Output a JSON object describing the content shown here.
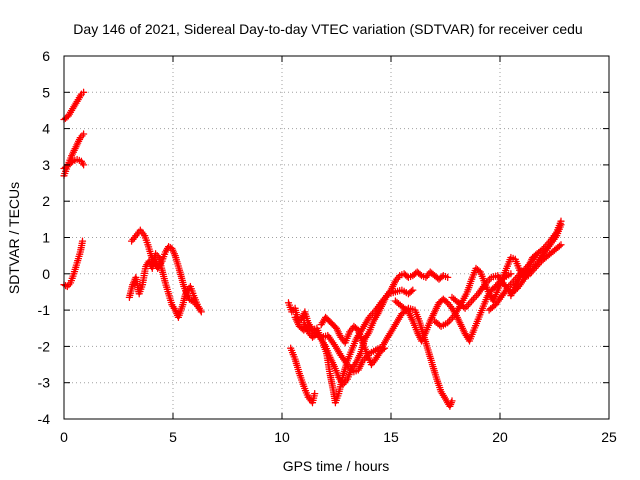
{
  "chart_data": {
    "type": "scatter",
    "title": "Day 146 of 2021, Sidereal Day-to-day VTEC variation (SDTVAR) for receiver cedu",
    "xlabel": "GPS time / hours",
    "ylabel": "SDTVAR / TECUs",
    "xlim": [
      0,
      25
    ],
    "ylim": [
      -4,
      6
    ],
    "xticks": [
      "0",
      "5",
      "10",
      "15",
      "20",
      "25"
    ],
    "yticks": [
      "-4",
      "-3",
      "-2",
      "-1",
      "0",
      "1",
      "2",
      "3",
      "4",
      "5",
      "6"
    ],
    "grid": true,
    "marker": "+",
    "color": "#ff0000",
    "series_points": [
      [
        [
          0.0,
          4.25
        ],
        [
          0.2,
          4.35
        ],
        [
          0.4,
          4.55
        ],
        [
          0.6,
          4.75
        ],
        [
          0.8,
          4.95
        ],
        [
          0.9,
          5.0
        ]
      ],
      [
        [
          0.0,
          2.7
        ],
        [
          0.15,
          2.95
        ],
        [
          0.35,
          3.25
        ],
        [
          0.55,
          3.5
        ],
        [
          0.75,
          3.75
        ],
        [
          0.9,
          3.85
        ]
      ],
      [
        [
          0.0,
          2.9
        ],
        [
          0.2,
          3.0
        ],
        [
          0.4,
          3.1
        ],
        [
          0.6,
          3.15
        ],
        [
          0.8,
          3.1
        ],
        [
          0.9,
          3.0
        ]
      ],
      [
        [
          0.0,
          -0.3
        ],
        [
          0.15,
          -0.35
        ],
        [
          0.3,
          -0.25
        ],
        [
          0.45,
          0.0
        ],
        [
          0.6,
          0.3
        ],
        [
          0.75,
          0.6
        ],
        [
          0.85,
          0.9
        ]
      ],
      [
        [
          3.0,
          -0.65
        ],
        [
          3.15,
          -0.3
        ],
        [
          3.3,
          -0.1
        ],
        [
          3.45,
          -0.55
        ],
        [
          3.6,
          -0.3
        ],
        [
          3.75,
          0.2
        ],
        [
          3.9,
          0.35
        ],
        [
          4.05,
          0.15
        ],
        [
          4.2,
          0.55
        ],
        [
          4.35,
          0.45
        ],
        [
          4.5,
          0.1
        ],
        [
          4.65,
          -0.25
        ],
        [
          4.8,
          -0.55
        ],
        [
          4.95,
          -0.85
        ],
        [
          5.1,
          -1.0
        ],
        [
          5.25,
          -1.2
        ],
        [
          5.45,
          -0.85
        ],
        [
          5.6,
          -0.5
        ],
        [
          5.8,
          -0.35
        ],
        [
          5.95,
          -0.6
        ],
        [
          6.15,
          -0.9
        ],
        [
          6.3,
          -1.05
        ]
      ],
      [
        [
          3.1,
          0.9
        ],
        [
          3.3,
          1.05
        ],
        [
          3.5,
          1.2
        ],
        [
          3.7,
          1.05
        ],
        [
          3.85,
          0.8
        ],
        [
          4.0,
          0.5
        ],
        [
          4.15,
          0.3
        ],
        [
          4.3,
          0.15
        ],
        [
          4.5,
          0.35
        ],
        [
          4.65,
          0.6
        ],
        [
          4.8,
          0.75
        ],
        [
          4.95,
          0.7
        ],
        [
          5.1,
          0.5
        ],
        [
          5.3,
          0.1
        ],
        [
          5.5,
          -0.35
        ],
        [
          5.75,
          -0.7
        ],
        [
          6.0,
          -0.8
        ],
        [
          6.2,
          -0.95
        ]
      ],
      [
        [
          10.3,
          -0.8
        ],
        [
          10.45,
          -1.05
        ],
        [
          10.6,
          -0.95
        ],
        [
          10.75,
          -1.3
        ],
        [
          10.9,
          -1.25
        ],
        [
          11.05,
          -1.05
        ],
        [
          11.2,
          -1.35
        ],
        [
          11.4,
          -1.55
        ],
        [
          11.6,
          -1.5
        ],
        [
          11.8,
          -1.8
        ],
        [
          12.0,
          -2.0
        ],
        [
          12.2,
          -2.3
        ],
        [
          12.4,
          -2.55
        ],
        [
          12.6,
          -2.85
        ],
        [
          12.8,
          -3.05
        ],
        [
          13.0,
          -2.9
        ],
        [
          13.2,
          -2.6
        ],
        [
          13.4,
          -2.45
        ],
        [
          13.6,
          -2.2
        ],
        [
          13.8,
          -1.8
        ],
        [
          14.0,
          -1.6
        ],
        [
          14.2,
          -1.3
        ],
        [
          14.4,
          -1.1
        ],
        [
          14.6,
          -0.85
        ],
        [
          14.8,
          -0.6
        ],
        [
          15.0,
          -0.45
        ],
        [
          15.2,
          -0.2
        ],
        [
          15.4,
          -0.05
        ],
        [
          15.6,
          0.0
        ],
        [
          15.8,
          -0.1
        ],
        [
          16.0,
          -0.05
        ],
        [
          16.2,
          0.05
        ],
        [
          16.4,
          -0.05
        ],
        [
          16.6,
          -0.1
        ],
        [
          16.8,
          0.05
        ],
        [
          17.0,
          -0.05
        ],
        [
          17.2,
          -0.15
        ],
        [
          17.4,
          -0.05
        ],
        [
          17.6,
          -0.1
        ]
      ],
      [
        [
          10.4,
          -2.05
        ],
        [
          10.6,
          -2.35
        ],
        [
          10.8,
          -2.75
        ],
        [
          11.0,
          -3.1
        ],
        [
          11.2,
          -3.4
        ],
        [
          11.4,
          -3.55
        ],
        [
          11.5,
          -3.3
        ]
      ],
      [
        [
          11.0,
          -1.35
        ],
        [
          11.2,
          -1.6
        ],
        [
          11.4,
          -1.75
        ],
        [
          11.6,
          -1.65
        ],
        [
          11.85,
          -1.85
        ],
        [
          12.05,
          -2.2
        ],
        [
          12.2,
          -2.75
        ],
        [
          12.35,
          -3.2
        ],
        [
          12.45,
          -3.55
        ],
        [
          12.6,
          -3.3
        ],
        [
          12.8,
          -2.8
        ],
        [
          13.0,
          -2.4
        ],
        [
          13.2,
          -2.1
        ],
        [
          13.4,
          -1.8
        ],
        [
          13.6,
          -1.6
        ],
        [
          13.8,
          -1.4
        ],
        [
          14.0,
          -1.2
        ],
        [
          14.3,
          -1.0
        ],
        [
          14.6,
          -0.75
        ],
        [
          14.9,
          -0.55
        ],
        [
          15.2,
          -0.5
        ],
        [
          15.5,
          -0.45
        ],
        [
          15.8,
          -0.55
        ],
        [
          16.0,
          -0.45
        ]
      ],
      [
        [
          11.8,
          -1.4
        ],
        [
          12.0,
          -1.2
        ],
        [
          12.25,
          -1.35
        ],
        [
          12.5,
          -1.5
        ],
        [
          12.7,
          -1.75
        ],
        [
          12.9,
          -1.9
        ],
        [
          13.1,
          -1.6
        ],
        [
          13.3,
          -1.45
        ],
        [
          13.5,
          -1.55
        ],
        [
          13.7,
          -1.9
        ],
        [
          13.9,
          -2.2
        ],
        [
          14.1,
          -2.5
        ],
        [
          14.3,
          -2.35
        ],
        [
          14.5,
          -2.15
        ],
        [
          14.7,
          -2.05
        ]
      ],
      [
        [
          10.6,
          -1.2
        ],
        [
          10.8,
          -1.45
        ],
        [
          11.0,
          -1.55
        ],
        [
          11.2,
          -1.45
        ],
        [
          11.5,
          -1.6
        ],
        [
          11.8,
          -1.75
        ],
        [
          12.1,
          -1.7
        ],
        [
          12.4,
          -1.95
        ],
        [
          12.7,
          -2.25
        ],
        [
          13.0,
          -2.5
        ],
        [
          13.3,
          -2.7
        ],
        [
          13.5,
          -2.65
        ],
        [
          13.7,
          -2.4
        ],
        [
          14.0,
          -2.2
        ],
        [
          14.3,
          -2.1
        ],
        [
          14.6,
          -2.0
        ],
        [
          14.9,
          -1.7
        ],
        [
          15.2,
          -1.4
        ],
        [
          15.5,
          -1.1
        ],
        [
          15.8,
          -0.95
        ],
        [
          16.1,
          -1.0
        ],
        [
          16.3,
          -1.3
        ],
        [
          16.5,
          -1.7
        ],
        [
          16.7,
          -2.1
        ],
        [
          16.9,
          -2.5
        ],
        [
          17.1,
          -2.9
        ],
        [
          17.3,
          -3.25
        ],
        [
          17.5,
          -3.45
        ],
        [
          17.7,
          -3.65
        ],
        [
          17.8,
          -3.5
        ]
      ],
      [
        [
          15.2,
          -0.75
        ],
        [
          15.5,
          -0.9
        ],
        [
          15.8,
          -1.05
        ],
        [
          16.0,
          -1.3
        ],
        [
          16.2,
          -1.6
        ],
        [
          16.4,
          -1.85
        ],
        [
          16.6,
          -1.6
        ],
        [
          16.8,
          -1.3
        ],
        [
          17.0,
          -1.05
        ],
        [
          17.2,
          -0.8
        ],
        [
          17.4,
          -0.7
        ],
        [
          17.6,
          -0.8
        ],
        [
          17.8,
          -0.95
        ],
        [
          18.0,
          -1.15
        ],
        [
          18.2,
          -1.4
        ],
        [
          18.4,
          -1.65
        ],
        [
          18.6,
          -1.85
        ],
        [
          18.8,
          -1.55
        ],
        [
          19.0,
          -1.25
        ],
        [
          19.2,
          -0.95
        ],
        [
          19.4,
          -0.65
        ],
        [
          19.6,
          -0.45
        ],
        [
          19.8,
          -0.35
        ],
        [
          20.0,
          -0.2
        ],
        [
          20.2,
          -0.1
        ],
        [
          20.5,
          0.0
        ]
      ],
      [
        [
          17.0,
          -1.3
        ],
        [
          17.3,
          -1.45
        ],
        [
          17.6,
          -1.35
        ],
        [
          17.9,
          -1.15
        ],
        [
          18.2,
          -0.85
        ],
        [
          18.5,
          -0.5
        ],
        [
          18.7,
          -0.15
        ],
        [
          18.9,
          0.15
        ],
        [
          19.1,
          0.05
        ],
        [
          19.3,
          -0.25
        ],
        [
          19.5,
          -0.55
        ],
        [
          19.7,
          -0.75
        ],
        [
          19.9,
          -0.45
        ],
        [
          20.1,
          -0.15
        ],
        [
          20.3,
          0.15
        ],
        [
          20.5,
          0.45
        ],
        [
          20.7,
          0.4
        ],
        [
          20.9,
          0.1
        ],
        [
          21.1,
          -0.1
        ],
        [
          21.3,
          0.2
        ],
        [
          21.5,
          0.45
        ],
        [
          21.7,
          0.55
        ]
      ],
      [
        [
          17.8,
          -0.65
        ],
        [
          18.1,
          -0.8
        ],
        [
          18.4,
          -0.95
        ],
        [
          18.7,
          -0.75
        ],
        [
          19.0,
          -0.55
        ],
        [
          19.3,
          -0.3
        ],
        [
          19.6,
          -0.1
        ],
        [
          19.9,
          -0.05
        ],
        [
          20.2,
          -0.3
        ],
        [
          20.5,
          -0.55
        ],
        [
          20.8,
          -0.4
        ],
        [
          21.1,
          -0.15
        ],
        [
          21.4,
          0.1
        ],
        [
          21.7,
          0.3
        ],
        [
          22.0,
          0.55
        ],
        [
          22.3,
          0.8
        ],
        [
          22.6,
          1.05
        ],
        [
          22.8,
          1.35
        ]
      ],
      [
        [
          19.5,
          -1.0
        ],
        [
          19.8,
          -0.85
        ],
        [
          20.1,
          -0.6
        ],
        [
          20.4,
          -0.35
        ],
        [
          20.7,
          -0.15
        ],
        [
          21.0,
          0.05
        ],
        [
          21.3,
          -0.05
        ],
        [
          21.6,
          0.15
        ],
        [
          21.9,
          0.35
        ],
        [
          22.2,
          0.5
        ],
        [
          22.5,
          0.65
        ],
        [
          22.8,
          0.8
        ]
      ],
      [
        [
          20.5,
          -0.6
        ],
        [
          20.8,
          -0.2
        ],
        [
          21.1,
          0.1
        ],
        [
          21.4,
          0.3
        ],
        [
          21.7,
          0.55
        ],
        [
          22.0,
          0.7
        ],
        [
          22.3,
          0.9
        ],
        [
          22.6,
          1.15
        ],
        [
          22.8,
          1.45
        ]
      ]
    ]
  }
}
